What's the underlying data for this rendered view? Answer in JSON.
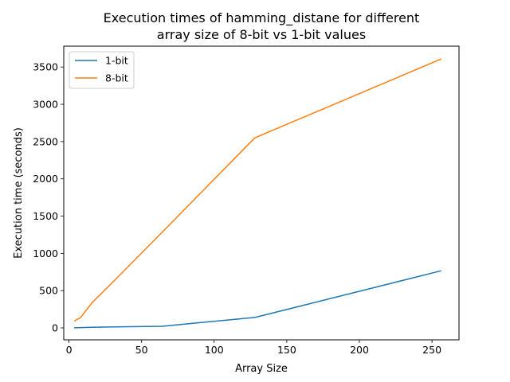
{
  "chart_data": {
    "type": "line",
    "title_lines": [
      "Execution times of hamming_distane for different",
      "array size of 8-bit vs 1-bit values"
    ],
    "xlabel": "Array Size",
    "ylabel": "Execution time (seconds)",
    "xlim": [
      -3.6,
      268.6
    ],
    "ylim": [
      -160,
      3780
    ],
    "xticks": [
      0,
      50,
      100,
      150,
      200,
      250
    ],
    "yticks": [
      0,
      500,
      1000,
      1500,
      2000,
      2500,
      3000,
      3500
    ],
    "legend_position": "upper-left",
    "series": [
      {
        "name": "1-bit",
        "color": "#1f77b4",
        "x": [
          4,
          8,
          16,
          32,
          64,
          128,
          256
        ],
        "y": [
          2,
          4,
          8,
          14,
          22,
          140,
          765
        ]
      },
      {
        "name": "8-bit",
        "color": "#ff7f0e",
        "x": [
          4,
          8,
          16,
          32,
          64,
          128,
          256
        ],
        "y": [
          95,
          140,
          340,
          650,
          1280,
          2550,
          3605
        ]
      }
    ]
  }
}
